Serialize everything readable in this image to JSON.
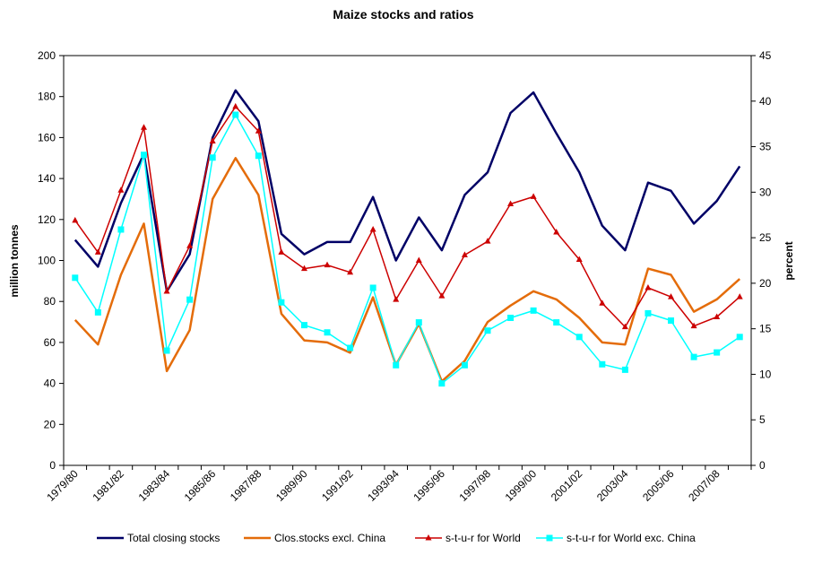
{
  "chart_data": {
    "type": "line",
    "title": "Maize stocks and ratios",
    "ylabel": "million tonnes",
    "y2label": "percent",
    "ylim": [
      0,
      200
    ],
    "y2lim": [
      0,
      45
    ],
    "yticks": [
      0,
      20,
      40,
      60,
      80,
      100,
      120,
      140,
      160,
      180,
      200
    ],
    "y2ticks": [
      0,
      5,
      10,
      15,
      20,
      25,
      30,
      35,
      40,
      45
    ],
    "grid": false,
    "legend_position": "bottom",
    "categories": [
      "1979/80",
      "1980/81",
      "1981/82",
      "1982/83",
      "1983/84",
      "1984/85",
      "1985/86",
      "1986/87",
      "1987/88",
      "1988/89",
      "1989/90",
      "1990/91",
      "1991/92",
      "1992/93",
      "1993/94",
      "1994/95",
      "1995/96",
      "1996/97",
      "1997/98",
      "1998/99",
      "1999/00",
      "2000/01",
      "2001/02",
      "2002/03",
      "2003/04",
      "2004/05",
      "2005/06",
      "2006/07",
      "2007/08",
      "2008/09"
    ],
    "x_tick_labels": [
      "1979/80",
      "1981/82",
      "1983/84",
      "1985/86",
      "1987/88",
      "1989/90",
      "1991/92",
      "1993/94",
      "1995/96",
      "1997/98",
      "1999/00",
      "2001/02",
      "2003/04",
      "2005/06",
      "2007/08"
    ],
    "series": [
      {
        "name": "Total closing stocks",
        "axis": "left",
        "color": "#000066",
        "marker": "none",
        "values": [
          110,
          97,
          128,
          152,
          85,
          103,
          160,
          183,
          168,
          113,
          103,
          109,
          109,
          131,
          100,
          121,
          105,
          132,
          143,
          172,
          182,
          162,
          143,
          117,
          105,
          138,
          134,
          118,
          129,
          146
        ]
      },
      {
        "name": "Clos.stocks excl. China",
        "axis": "left",
        "color": "#e46c0a",
        "marker": "none",
        "values": [
          71,
          59,
          93,
          118,
          46,
          66,
          130,
          150,
          132,
          74,
          61,
          60,
          55,
          82,
          49,
          69,
          41,
          51,
          70,
          78,
          85,
          81,
          72,
          60,
          59,
          96,
          93,
          75,
          81,
          91
        ]
      },
      {
        "name": "s-t-u-r for World",
        "axis": "right",
        "color": "#cc0000",
        "marker": "triangle",
        "values": [
          26.9,
          23.4,
          30.2,
          37.1,
          19.1,
          24.1,
          35.6,
          39.4,
          36.7,
          23.4,
          21.6,
          22.0,
          21.2,
          25.9,
          18.2,
          22.5,
          18.6,
          23.1,
          24.6,
          28.7,
          29.5,
          25.6,
          22.6,
          17.8,
          15.2,
          19.5,
          18.5,
          15.3,
          16.3,
          18.5
        ]
      },
      {
        "name": "s-t-u-r for World exc. China",
        "axis": "right",
        "color": "#00ffff",
        "marker": "square",
        "values": [
          20.6,
          16.8,
          25.9,
          34.1,
          12.6,
          18.2,
          33.8,
          38.5,
          34.0,
          17.9,
          15.4,
          14.6,
          12.9,
          19.5,
          11.0,
          15.7,
          9.0,
          11.0,
          14.8,
          16.2,
          17.0,
          15.7,
          14.1,
          11.1,
          10.5,
          16.7,
          15.9,
          11.9,
          12.4,
          14.1
        ]
      }
    ]
  }
}
